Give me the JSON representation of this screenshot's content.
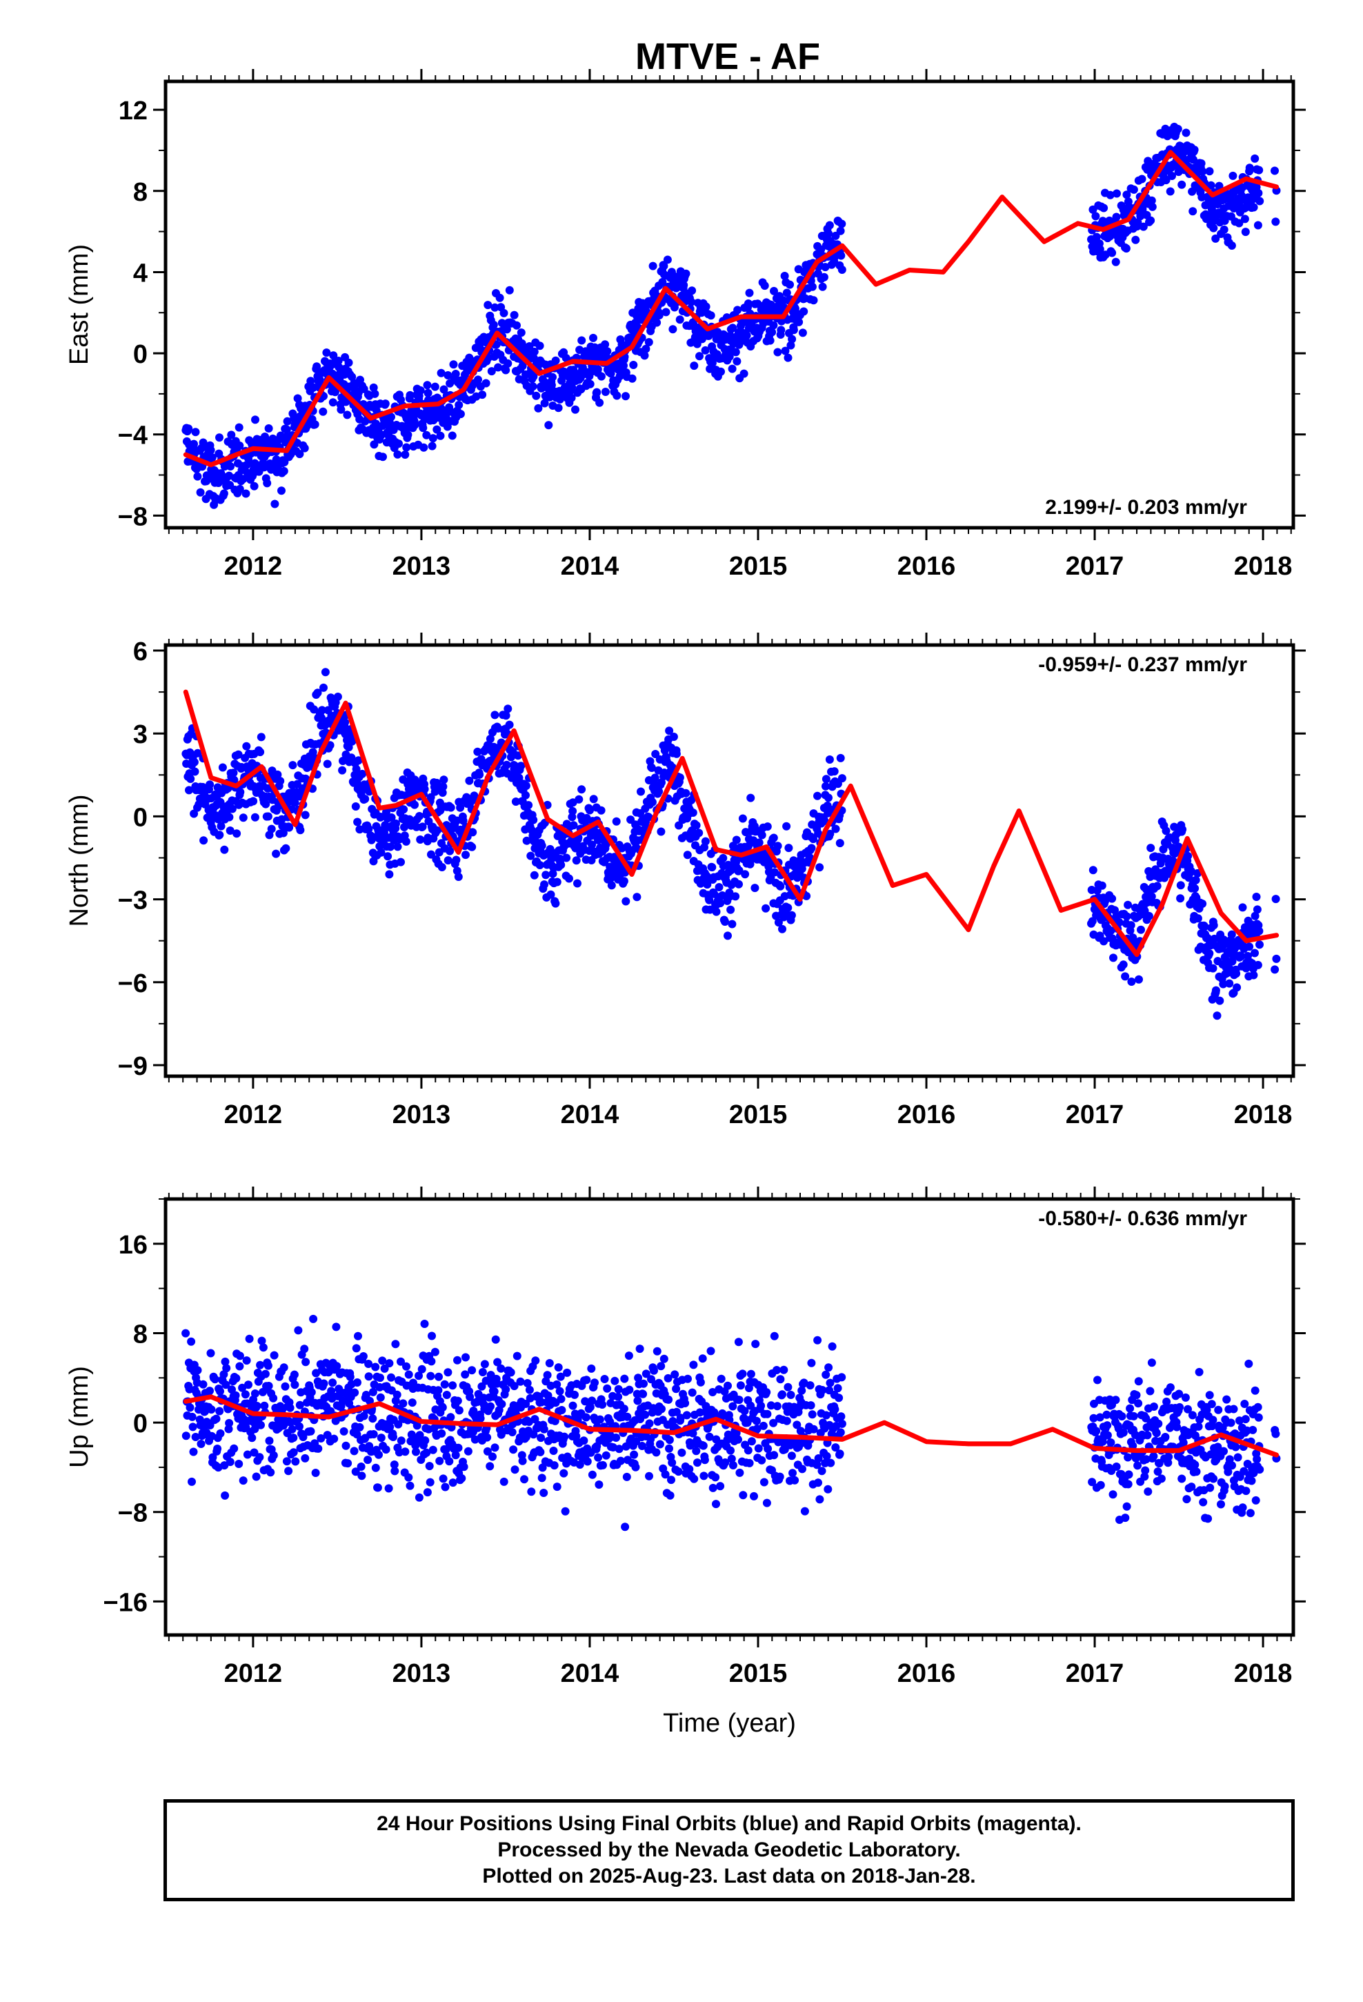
{
  "title": "MTVE - AF",
  "footer": {
    "line1": "24 Hour Positions Using Final Orbits (blue) and Rapid Orbits (magenta).",
    "line2": "Processed by the Nevada Geodetic Laboratory.",
    "line3": "Plotted on 2025-Aug-23. Last data on 2018-Jan-28."
  },
  "colors": {
    "points": "#0000ff",
    "model": "#ff0000",
    "frame": "#000000"
  },
  "chart_data": [
    {
      "type": "scatter",
      "ylabel": "East (mm)",
      "xlabel": "",
      "xlim": [
        2011.48,
        2018.18
      ],
      "ylim": [
        -8.6,
        13.4
      ],
      "yticks": [
        -8,
        -4,
        0,
        4,
        8,
        12
      ],
      "yticks_labels": [
        "−8",
        "−4",
        "0",
        "4",
        "8",
        "12"
      ],
      "xticks": [
        2012,
        2013,
        2014,
        2015,
        2016,
        2017,
        2018
      ],
      "rate_label": "2.199+/- 0.203 mm/yr",
      "rate_position": "bottom-right",
      "trend": {
        "slope": 2.199,
        "t0": 2011.6,
        "y0": -5.2,
        "ann": 1.5,
        "semi": 0.7
      },
      "scatter_sd": 1.15,
      "data_segments": [
        [
          2011.6,
          2015.33
        ],
        [
          2015.35,
          2015.5
        ],
        [
          2016.98,
          2017.98
        ],
        [
          2018.07,
          2018.08
        ]
      ],
      "model_line": {
        "x": [
          2011.6,
          2011.75,
          2011.9,
          2012.0,
          2012.2,
          2012.45,
          2012.7,
          2012.9,
          2013.1,
          2013.25,
          2013.45,
          2013.7,
          2013.9,
          2014.1,
          2014.25,
          2014.45,
          2014.7,
          2014.9,
          2015.15,
          2015.35,
          2015.5,
          2015.7,
          2015.9,
          2016.1,
          2016.25,
          2016.45,
          2016.7,
          2016.9,
          2017.05,
          2017.2,
          2017.45,
          2017.7,
          2017.9,
          2018.08
        ],
        "y": [
          -5.0,
          -5.5,
          -5.0,
          -4.7,
          -4.8,
          -1.2,
          -3.2,
          -2.6,
          -2.5,
          -1.8,
          1.0,
          -1.0,
          -0.4,
          -0.5,
          0.3,
          3.2,
          1.2,
          1.8,
          1.8,
          4.5,
          5.3,
          3.4,
          4.1,
          4.0,
          5.5,
          7.7,
          5.5,
          6.4,
          6.1,
          6.6,
          9.9,
          7.8,
          8.6,
          8.2
        ]
      }
    },
    {
      "type": "scatter",
      "ylabel": "North (mm)",
      "xlabel": "",
      "xlim": [
        2011.48,
        2018.18
      ],
      "ylim": [
        -9.4,
        6.2
      ],
      "yticks": [
        -9,
        -6,
        -3,
        0,
        3,
        6
      ],
      "yticks_labels": [
        "−9",
        "−6",
        "−3",
        "0",
        "3",
        "6"
      ],
      "xticks": [
        2012,
        2013,
        2014,
        2015,
        2016,
        2017,
        2018
      ],
      "rate_label": "-0.959+/- 0.237 mm/yr",
      "rate_position": "top-right",
      "trend": {
        "slope": -0.959,
        "t0": 2011.6,
        "y0": 2.0,
        "ann": 1.3,
        "semi": 1.2
      },
      "scatter_sd": 1.0,
      "data_segments": [
        [
          2011.6,
          2015.33
        ],
        [
          2015.35,
          2015.5
        ],
        [
          2016.98,
          2017.98
        ],
        [
          2018.07,
          2018.08
        ]
      ],
      "model_line": {
        "x": [
          2011.6,
          2011.75,
          2011.9,
          2012.05,
          2012.25,
          2012.4,
          2012.55,
          2012.75,
          2012.85,
          2013.0,
          2013.22,
          2013.4,
          2013.55,
          2013.75,
          2013.9,
          2014.05,
          2014.25,
          2014.4,
          2014.55,
          2014.75,
          2014.9,
          2015.05,
          2015.25,
          2015.4,
          2015.55,
          2015.8,
          2016.0,
          2016.25,
          2016.4,
          2016.55,
          2016.8,
          2017.0,
          2017.25,
          2017.4,
          2017.55,
          2017.75,
          2017.9,
          2018.08
        ],
        "y": [
          4.5,
          1.4,
          1.1,
          1.8,
          -0.3,
          2.3,
          4.1,
          0.3,
          0.4,
          0.8,
          -1.3,
          1.5,
          3.1,
          -0.1,
          -0.7,
          -0.2,
          -2.1,
          0.2,
          2.1,
          -1.2,
          -1.4,
          -1.1,
          -3.0,
          -0.5,
          1.1,
          -2.5,
          -2.1,
          -4.1,
          -1.8,
          0.2,
          -3.4,
          -3.0,
          -5.0,
          -3.2,
          -0.8,
          -3.5,
          -4.5,
          -4.3
        ]
      }
    },
    {
      "type": "scatter",
      "ylabel": "Up (mm)",
      "xlabel": "Time (year)",
      "xlim": [
        2011.48,
        2018.18
      ],
      "ylim": [
        -19.0,
        20.0
      ],
      "yticks": [
        -16,
        -8,
        0,
        8,
        16
      ],
      "yticks_labels": [
        "−16",
        "−8",
        "0",
        "8",
        "16"
      ],
      "xticks": [
        2012,
        2013,
        2014,
        2015,
        2016,
        2017,
        2018
      ],
      "rate_label": "-0.580+/- 0.636 mm/yr",
      "rate_position": "top-right",
      "trend": {
        "slope": -0.58,
        "t0": 2011.6,
        "y0": 1.6,
        "ann": 0.6,
        "semi": 0.5
      },
      "scatter_sd": 4.0,
      "data_segments": [
        [
          2011.6,
          2015.33
        ],
        [
          2015.35,
          2015.5
        ],
        [
          2016.98,
          2017.98
        ],
        [
          2018.07,
          2018.08
        ]
      ],
      "model_line": {
        "x": [
          2011.6,
          2011.75,
          2012.0,
          2012.2,
          2012.45,
          2012.75,
          2013.0,
          2013.25,
          2013.45,
          2013.7,
          2014.0,
          2014.25,
          2014.5,
          2014.75,
          2015.0,
          2015.25,
          2015.5,
          2015.75,
          2016.0,
          2016.25,
          2016.5,
          2016.75,
          2017.0,
          2017.25,
          2017.5,
          2017.75,
          2018.08
        ],
        "y": [
          1.9,
          2.3,
          0.8,
          0.7,
          0.5,
          1.7,
          0.1,
          -0.1,
          -0.2,
          1.2,
          -0.6,
          -0.7,
          -0.9,
          0.3,
          -1.2,
          -1.3,
          -1.5,
          0.0,
          -1.7,
          -1.9,
          -1.9,
          -0.6,
          -2.3,
          -2.5,
          -2.5,
          -1.1,
          -2.9
        ]
      }
    }
  ]
}
